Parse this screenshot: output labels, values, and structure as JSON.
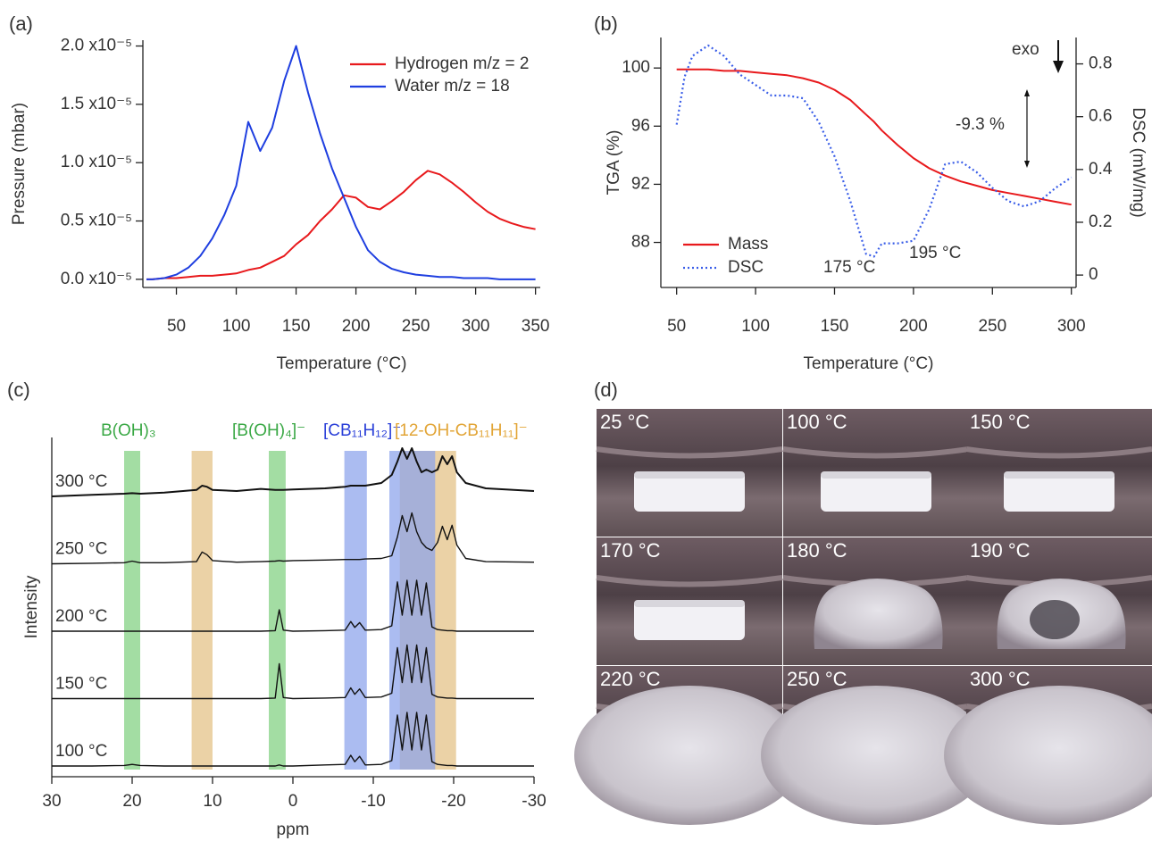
{
  "chart_data": [
    {
      "type": "line",
      "panel_label": "(a)",
      "x_label": "Temperature (°C)",
      "y_label": "Pressure (mbar)",
      "xlim": [
        22,
        354
      ],
      "xticks": [
        50,
        100,
        150,
        200,
        250,
        300,
        350
      ],
      "ylim": [
        -7e-07,
        2.05e-05
      ],
      "yticks": [
        {
          "value": 0,
          "label": "0.0 x10⁻⁵"
        },
        {
          "value": 5e-06,
          "label": "0.5 x10⁻⁵"
        },
        {
          "value": 1e-05,
          "label": "1.0 x10⁻⁵"
        },
        {
          "value": 1.5e-05,
          "label": "1.5 x10⁻⁵"
        },
        {
          "value": 2e-05,
          "label": "2.0 x10⁻⁵"
        }
      ],
      "legend": "upper right",
      "x": [
        25,
        30,
        40,
        50,
        60,
        70,
        80,
        90,
        100,
        110,
        120,
        130,
        140,
        150,
        160,
        170,
        180,
        190,
        200,
        210,
        220,
        230,
        240,
        250,
        260,
        270,
        280,
        290,
        300,
        310,
        320,
        330,
        340,
        350
      ],
      "series": [
        {
          "name": "Hydrogen m/z = 2",
          "color": "#e8191c",
          "values": [
            0,
            0,
            1e-07,
            1e-07,
            2e-07,
            3e-07,
            3e-07,
            4e-07,
            5e-07,
            8e-07,
            1e-06,
            1.5e-06,
            2e-06,
            3e-06,
            3.8e-06,
            5e-06,
            6e-06,
            7.2e-06,
            7e-06,
            6.2e-06,
            6e-06,
            6.7e-06,
            7.5e-06,
            8.5e-06,
            9.3e-06,
            9e-06,
            8.3e-06,
            7.5e-06,
            6.6e-06,
            5.8e-06,
            5.2e-06,
            4.8e-06,
            4.5e-06,
            4.3e-06
          ]
        },
        {
          "name": "Water m/z = 18",
          "color": "#1f3fe0",
          "values": [
            0,
            0,
            1e-07,
            4e-07,
            1e-06,
            2e-06,
            3.5e-06,
            5.5e-06,
            8e-06,
            1.35e-05,
            1.1e-05,
            1.3e-05,
            1.7e-05,
            2e-05,
            1.6e-05,
            1.25e-05,
            9.5e-06,
            7e-06,
            4.5e-06,
            2.5e-06,
            1.5e-06,
            9e-07,
            6e-07,
            4e-07,
            3e-07,
            2e-07,
            2e-07,
            1e-07,
            1e-07,
            1e-07,
            0,
            0,
            0,
            0
          ]
        }
      ]
    },
    {
      "type": "line",
      "panel_label": "(b)",
      "x_label": "Temperature (°C)",
      "y_label": "TGA (%)",
      "y2_label": "DSC (mW/mg)",
      "xlim": [
        40,
        303
      ],
      "xticks": [
        50,
        100,
        150,
        200,
        250,
        300
      ],
      "ylim": [
        84.9,
        102.1
      ],
      "yticks": [
        88,
        92,
        96,
        100
      ],
      "y2lim": [
        -0.047,
        0.9
      ],
      "y2ticks": [
        0,
        0.2,
        0.4,
        0.6,
        0.8
      ],
      "legend": "lower left",
      "x": [
        50,
        55,
        60,
        70,
        80,
        90,
        100,
        110,
        120,
        130,
        140,
        150,
        160,
        170,
        175,
        180,
        190,
        200,
        210,
        220,
        230,
        240,
        250,
        260,
        270,
        280,
        290,
        300
      ],
      "series": [
        {
          "name": "Mass",
          "color": "#e8191c",
          "line_style": "solid",
          "values": [
            99.9,
            99.9,
            99.9,
            99.9,
            99.8,
            99.8,
            99.7,
            99.6,
            99.5,
            99.3,
            99.0,
            98.5,
            97.8,
            96.8,
            96.3,
            95.7,
            94.7,
            93.8,
            93.1,
            92.6,
            92.2,
            91.9,
            91.6,
            91.4,
            91.2,
            91.0,
            90.8,
            90.6
          ]
        },
        {
          "name": "DSC",
          "color": "#3a5ee8",
          "line_style": "dotted",
          "axis": "y2",
          "values": [
            0.57,
            0.75,
            0.83,
            0.87,
            0.83,
            0.76,
            0.72,
            0.68,
            0.68,
            0.67,
            0.58,
            0.45,
            0.28,
            0.08,
            0.07,
            0.12,
            0.12,
            0.13,
            0.25,
            0.42,
            0.43,
            0.39,
            0.33,
            0.28,
            0.26,
            0.28,
            0.33,
            0.37
          ]
        }
      ],
      "annotations": [
        "exo",
        "-9.3 %",
        "175 °C",
        "195 °C"
      ]
    },
    {
      "type": "spectra",
      "panel_label": "(c)",
      "x_label": "ppm",
      "y_label": "Intensity",
      "xlim": [
        30,
        -30
      ],
      "xticks": [
        30,
        20,
        10,
        0,
        -10,
        -20,
        -30
      ],
      "x": [
        30,
        25,
        21,
        20,
        19,
        16,
        12,
        11.3,
        10.7,
        10,
        7,
        4,
        2.2,
        1.7,
        1.2,
        0,
        -4,
        -6.5,
        -7.2,
        -7.7,
        -8.3,
        -9,
        -11,
        -12.3,
        -13.0,
        -13.6,
        -14.2,
        -14.8,
        -15.4,
        -16.0,
        -16.6,
        -17.3,
        -18.0,
        -18.6,
        -19.2,
        -19.8,
        -20.4,
        -21.5,
        -24,
        -30
      ],
      "series": [
        {
          "name": "100 °C",
          "color": "#111111",
          "values": [
            0,
            0,
            0.01,
            0.03,
            0.01,
            0,
            0,
            0,
            0,
            0,
            0,
            0,
            0,
            0.02,
            0,
            0,
            0.02,
            0.03,
            0.2,
            0.08,
            0.18,
            0.02,
            0.03,
            0.1,
            0.95,
            0.3,
            1.0,
            0.3,
            1.0,
            0.3,
            0.95,
            0.08,
            0.03,
            0.02,
            0.01,
            0.01,
            0,
            0,
            0,
            0
          ]
        },
        {
          "name": "150 °C",
          "color": "#111111",
          "values": [
            0,
            0,
            0,
            0,
            0,
            0,
            0,
            0,
            0,
            0,
            0,
            0,
            0.01,
            0.65,
            0.02,
            0,
            0.01,
            0.02,
            0.2,
            0.08,
            0.18,
            0.02,
            0.03,
            0.1,
            0.95,
            0.3,
            1.0,
            0.3,
            1.0,
            0.3,
            0.95,
            0.08,
            0.03,
            0.02,
            0.01,
            0.01,
            0,
            0,
            0,
            0
          ]
        },
        {
          "name": "200 °C",
          "color": "#111111",
          "values": [
            0,
            0,
            0,
            0,
            0,
            0,
            0,
            0,
            0,
            0,
            0,
            0,
            0.01,
            0.4,
            0.02,
            0,
            0.01,
            0.02,
            0.18,
            0.07,
            0.16,
            0.02,
            0.03,
            0.1,
            0.92,
            0.3,
            0.95,
            0.3,
            0.95,
            0.3,
            0.9,
            0.08,
            0.03,
            0.02,
            0.01,
            0.01,
            0,
            0,
            0,
            0
          ]
        },
        {
          "name": "250 °C",
          "color": "#111111",
          "values": [
            0,
            0.01,
            0.02,
            0.05,
            0.02,
            0.02,
            0.04,
            0.22,
            0.17,
            0.06,
            0.03,
            0.04,
            0.05,
            0.06,
            0.05,
            0.06,
            0.07,
            0.08,
            0.08,
            0.08,
            0.08,
            0.09,
            0.1,
            0.15,
            0.5,
            0.9,
            0.6,
            0.95,
            0.6,
            0.4,
            0.3,
            0.25,
            0.4,
            0.7,
            0.45,
            0.72,
            0.35,
            0.1,
            0.04,
            0.03
          ]
        },
        {
          "name": "300 °C",
          "color": "#111111",
          "values": [
            0,
            0.03,
            0.05,
            0.06,
            0.05,
            0.07,
            0.12,
            0.2,
            0.18,
            0.12,
            0.1,
            0.14,
            0.12,
            0.12,
            0.12,
            0.13,
            0.15,
            0.18,
            0.2,
            0.2,
            0.2,
            0.2,
            0.25,
            0.4,
            0.65,
            0.9,
            0.7,
            0.9,
            0.65,
            0.45,
            0.5,
            0.45,
            0.5,
            0.75,
            0.6,
            0.75,
            0.45,
            0.25,
            0.15,
            0.1
          ]
        }
      ],
      "bands": [
        {
          "from": 21,
          "to": 19,
          "color": "#7fd07f"
        },
        {
          "from": 12.6,
          "to": 10,
          "color": "#e3c084"
        },
        {
          "from": 3,
          "to": 0.9,
          "color": "#7fd07f"
        },
        {
          "from": -6.4,
          "to": -9.2,
          "color": "#8aa2ec"
        },
        {
          "from": -13.3,
          "to": -20.3,
          "color": "#e3c084"
        },
        {
          "from": -12,
          "to": -17.7,
          "color": "#8aa2ec"
        }
      ],
      "band_labels": [
        {
          "text": "B(OH)₃",
          "color": "#3aa845"
        },
        {
          "text": "[B(OH)₄]⁻",
          "color": "#3aa845"
        },
        {
          "text": "[CB₁₁H₁₂]⁻",
          "color": "#2a3fd8"
        },
        {
          "text": "[12-OH-CB₁₁H₁₁]⁻",
          "color": "#e2a537"
        }
      ]
    }
  ],
  "photo_panel": {
    "panel_label": "(d)",
    "labels": [
      "25 °C",
      "100 °C",
      "150 °C",
      "170 °C",
      "180 °C",
      "190 °C",
      "220 °C",
      "250 °C",
      "300 °C"
    ]
  }
}
